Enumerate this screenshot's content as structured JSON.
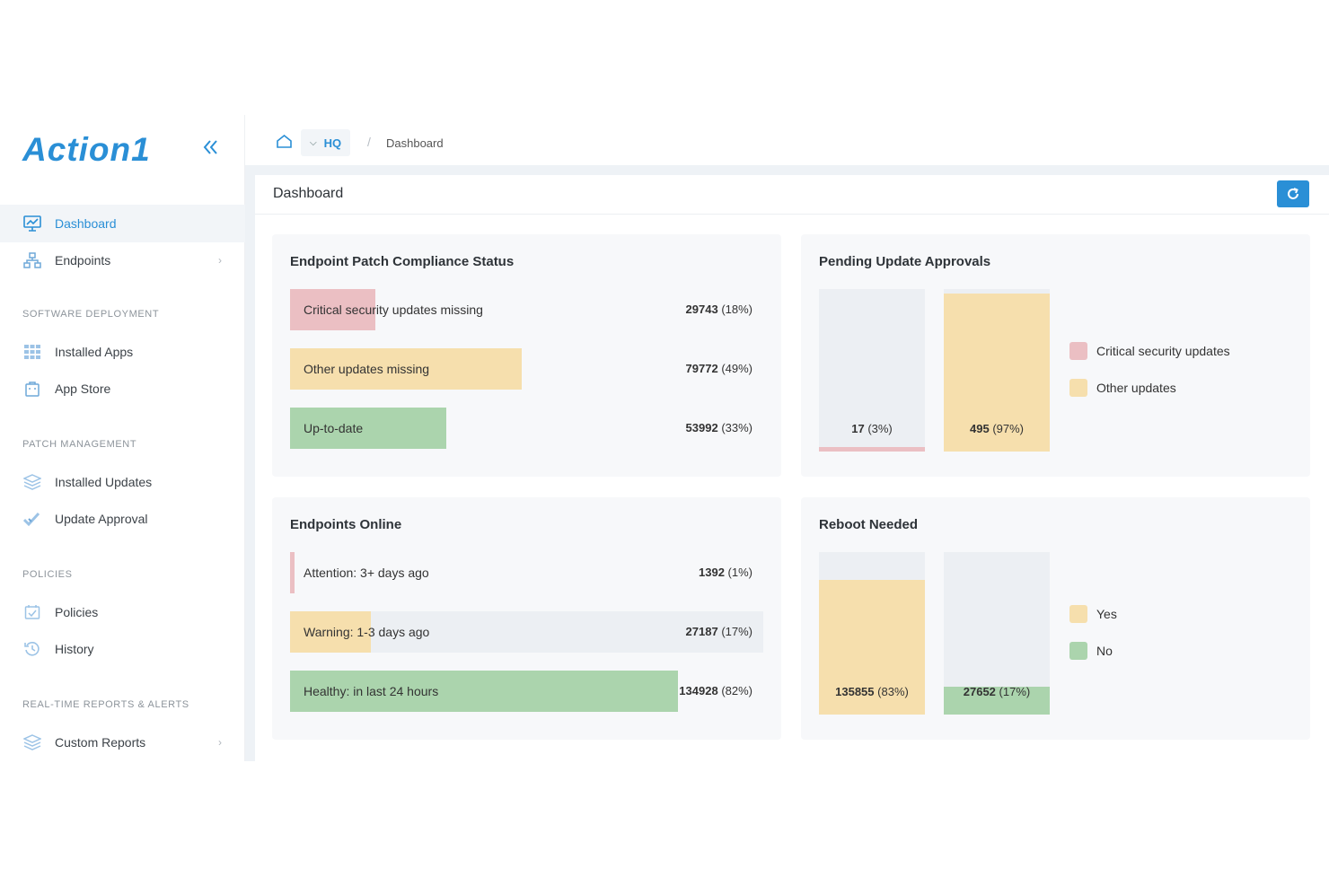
{
  "brand": {
    "logo": "Action1",
    "collapse_icon": "double-chevron-left-icon"
  },
  "sidebar": {
    "items": [
      {
        "label": "Dashboard",
        "icon": "dashboard-icon"
      },
      {
        "label": "Endpoints",
        "icon": "endpoints-icon"
      },
      {
        "label": "Installed Apps",
        "icon": "grid-icon"
      },
      {
        "label": "App Store",
        "icon": "store-icon"
      },
      {
        "label": "Installed Updates",
        "icon": "layers-icon"
      },
      {
        "label": "Update Approval",
        "icon": "double-check-icon"
      },
      {
        "label": "Policies",
        "icon": "calendar-check-icon"
      },
      {
        "label": "History",
        "icon": "history-icon"
      },
      {
        "label": "Custom Reports",
        "icon": "layers-icon"
      }
    ],
    "sections": [
      "SOFTWARE DEPLOYMENT",
      "PATCH MANAGEMENT",
      "POLICIES",
      "REAL-TIME REPORTS & ALERTS"
    ]
  },
  "breadcrumb": {
    "org": "HQ",
    "current": "Dashboard",
    "separator": "/"
  },
  "panel": {
    "title": "Dashboard"
  },
  "colors": {
    "accent": "#2a8fd6",
    "critical": "#ebbfc3",
    "other": "#f6dfad",
    "ok": "#abd4ad",
    "empty": "#eceff3"
  },
  "compliance": {
    "title": "Endpoint Patch Compliance Status",
    "rows": [
      {
        "label": "Critical security updates missing",
        "count": "29743",
        "pct": "(18%)",
        "fraction": 0.18
      },
      {
        "label": "Other updates missing",
        "count": "79772",
        "pct": "(49%)",
        "fraction": 0.49
      },
      {
        "label": "Up-to-date",
        "count": "53992",
        "pct": "(33%)",
        "fraction": 0.33
      }
    ]
  },
  "pending": {
    "title": "Pending Update Approvals",
    "columns": [
      {
        "count": "17",
        "pct": "(3%)",
        "fraction": 0.03
      },
      {
        "count": "495",
        "pct": "(97%)",
        "fraction": 0.97
      }
    ],
    "legend": [
      "Critical security updates",
      "Other updates"
    ]
  },
  "online": {
    "title": "Endpoints Online",
    "rows": [
      {
        "label": "Attention: 3+ days ago",
        "count": "1392",
        "pct": "(1%)",
        "fraction": 0.01
      },
      {
        "label": "Warning: 1-3 days ago",
        "count": "27187",
        "pct": "(17%)",
        "fraction": 0.17
      },
      {
        "label": "Healthy: in last 24 hours",
        "count": "134928",
        "pct": "(82%)",
        "fraction": 0.82
      }
    ]
  },
  "reboot": {
    "title": "Reboot Needed",
    "columns": [
      {
        "count": "135855",
        "pct": "(83%)",
        "fraction": 0.83
      },
      {
        "count": "27652",
        "pct": "(17%)",
        "fraction": 0.17
      }
    ],
    "legend": [
      "Yes",
      "No"
    ]
  }
}
